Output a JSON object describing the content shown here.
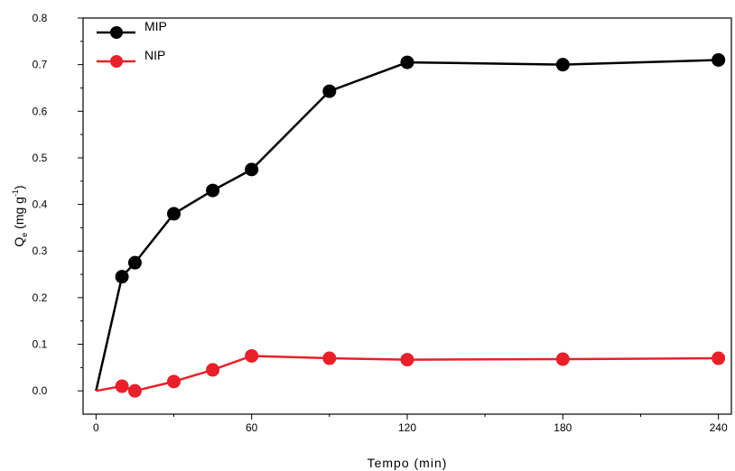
{
  "chart_data": {
    "type": "line",
    "xlabel": "Tempo (min)",
    "ylabel": {
      "main": "Q",
      "sub": "e",
      "unit": " (mg g",
      "sup": "-1",
      "close": ")"
    },
    "xlim": [
      -5,
      245
    ],
    "ylim": [
      -0.05,
      0.8
    ],
    "xticks": [
      0,
      60,
      120,
      180,
      240
    ],
    "yticks": [
      0.0,
      0.1,
      0.2,
      0.3,
      0.4,
      0.5,
      0.6,
      0.7,
      0.8
    ],
    "ytick_labels": [
      "0.0",
      "0.1",
      "0.2",
      "0.3",
      "0.4",
      "0.5",
      "0.6",
      "0.7",
      "0.8"
    ],
    "grid": false,
    "legend_position": "top-left",
    "series": [
      {
        "name": "MIP",
        "color": "#000000",
        "x": [
          0,
          10,
          15,
          30,
          45,
          60,
          90,
          120,
          180,
          240
        ],
        "y": [
          0.0,
          0.245,
          0.275,
          0.38,
          0.43,
          0.475,
          0.643,
          0.705,
          0.7,
          0.71
        ]
      },
      {
        "name": "NIP",
        "color": "#e8202a",
        "x": [
          0,
          10,
          15,
          30,
          45,
          60,
          90,
          120,
          180,
          240
        ],
        "y": [
          0.0,
          0.01,
          0.0,
          0.02,
          0.045,
          0.075,
          0.07,
          0.067,
          0.068,
          0.07
        ]
      }
    ]
  }
}
